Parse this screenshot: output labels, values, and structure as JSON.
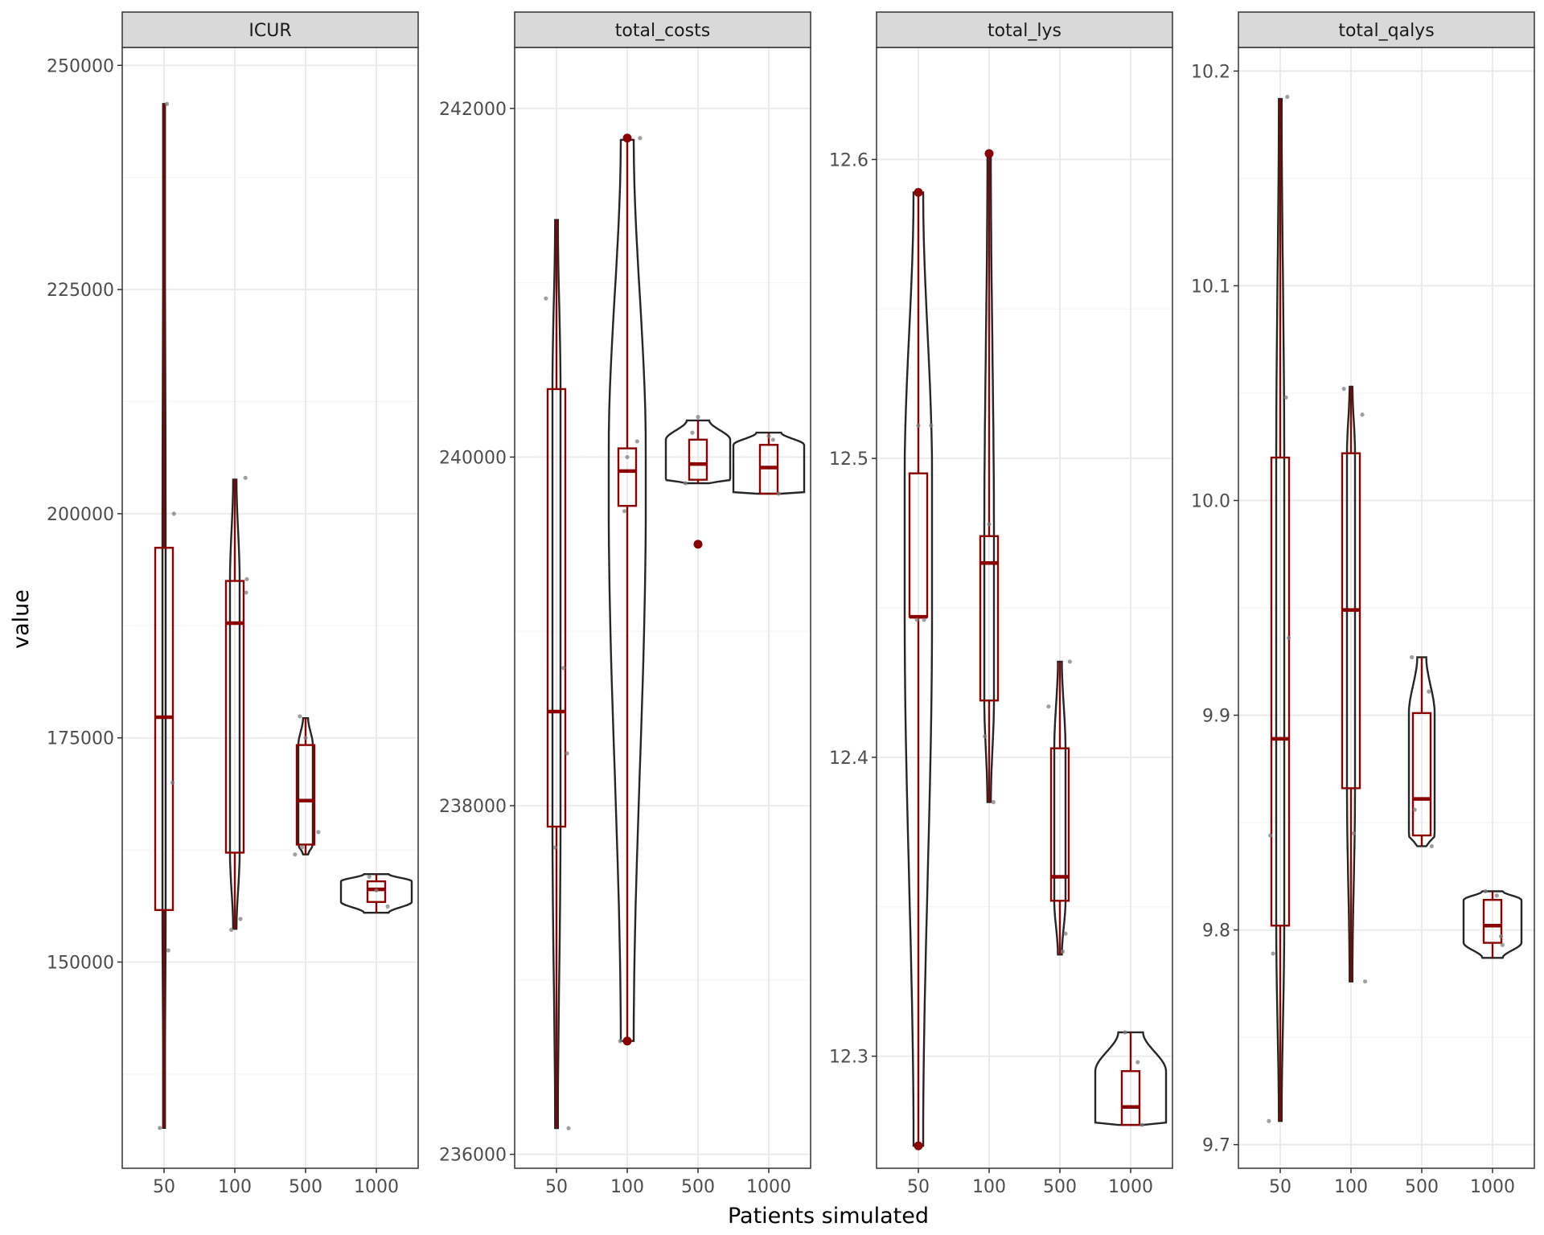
{
  "axes": {
    "xlabel": "Patients simulated",
    "ylabel": "value"
  },
  "colors": {
    "box": "#8b0000",
    "violin": "#262626",
    "point": "#8b0000",
    "jitter": "#7f7f7f",
    "strip_bg": "#d9d9d9",
    "grid_major": "#ebebeb",
    "grid_minor": "#f4f4f4",
    "panel_border": "#333333"
  },
  "chart_data": {
    "type": "violin-boxplot",
    "categories": [
      "50",
      "100",
      "500",
      "1000"
    ],
    "facets": [
      {
        "title": "ICUR",
        "ylim": [
          127000,
          252000
        ],
        "yticks": [
          150000,
          175000,
          200000,
          225000,
          250000
        ],
        "ytick_labels": [
          "150000",
          "175000",
          "200000",
          "225000",
          "250000"
        ],
        "groups": [
          {
            "category": "50",
            "min": 131500,
            "q1": 155800,
            "median": 177300,
            "q3": 196200,
            "max": 245700,
            "violin_max_halfwidth": 2,
            "outliers": [],
            "jitter": [
              [
                -0.06,
                131500
              ],
              [
                0.06,
                151300
              ],
              [
                0.12,
                170000
              ],
              [
                0.14,
                200000
              ],
              [
                0.04,
                245700
              ]
            ]
          },
          {
            "category": "100",
            "min": 153700,
            "q1": 162200,
            "median": 187800,
            "q3": 192500,
            "max": 203800,
            "violin_max_halfwidth": 6,
            "outliers": [],
            "jitter": [
              [
                -0.05,
                153600
              ],
              [
                0.08,
                154800
              ],
              [
                0.16,
                191200
              ],
              [
                0.17,
                192700
              ],
              [
                0.15,
                204000
              ]
            ]
          },
          {
            "category": "500",
            "min": 162000,
            "q1": 163100,
            "median": 168000,
            "q3": 174200,
            "max": 177200,
            "violin_max_halfwidth": 9,
            "outliers": [],
            "jitter": [
              [
                -0.15,
                162000
              ],
              [
                0.18,
                164500
              ],
              [
                -0.05,
                162800
              ],
              [
                0.0,
                175000
              ],
              [
                -0.08,
                177400
              ]
            ]
          },
          {
            "category": "1000",
            "min": 155500,
            "q1": 156700,
            "median": 158100,
            "q3": 159000,
            "max": 159800,
            "violin_max_halfwidth": 44,
            "outliers": [],
            "jitter": [
              [
                0.16,
                156200
              ],
              [
                -0.1,
                159500
              ],
              [
                0.0,
                158000
              ]
            ]
          }
        ]
      },
      {
        "title": "total_costs",
        "ylim": [
          235920,
          242350
        ],
        "yticks": [
          236000,
          238000,
          240000,
          242000
        ],
        "ytick_labels": [
          "236000",
          "238000",
          "240000",
          "242000"
        ],
        "groups": [
          {
            "category": "50",
            "min": 236150,
            "q1": 237880,
            "median": 238540,
            "q3": 240390,
            "max": 241360,
            "violin_max_halfwidth": 5,
            "outliers": [],
            "jitter": [
              [
                -0.15,
                240910
              ],
              [
                0.1,
                238790
              ],
              [
                0.15,
                238300
              ],
              [
                -0.02,
                237760
              ],
              [
                0.17,
                236150
              ]
            ]
          },
          {
            "category": "100",
            "min": 236650,
            "q1": 239720,
            "median": 239920,
            "q3": 240050,
            "max": 241820,
            "violin_max_halfwidth": 23,
            "outliers": [
              241830,
              236650
            ],
            "jitter": [
              [
                0.18,
                241830
              ],
              [
                -0.04,
                239690
              ],
              [
                0.14,
                240090
              ],
              [
                -0.1,
                236650
              ],
              [
                0.0,
                240000
              ]
            ]
          },
          {
            "category": "500",
            "min": 239850,
            "q1": 239870,
            "median": 239960,
            "q3": 240100,
            "max": 240210,
            "violin_max_halfwidth": 40,
            "outliers": [
              239500
            ],
            "jitter": [
              [
                -0.18,
                239850
              ],
              [
                -0.08,
                240140
              ],
              [
                0.0,
                240230
              ],
              [
                0.0,
                239500
              ]
            ]
          },
          {
            "category": "1000",
            "min": 239790,
            "q1": 239790,
            "median": 239940,
            "q3": 240070,
            "max": 240140,
            "violin_max_halfwidth": 44,
            "outliers": [],
            "jitter": [
              [
                0.06,
                240100
              ],
              [
                0.14,
                239790
              ],
              [
                0.0,
                240120
              ]
            ]
          }
        ]
      },
      {
        "title": "total_lys",
        "ylim": [
          12.2625,
          12.6375
        ],
        "yticks": [
          12.3,
          12.4,
          12.5,
          12.6
        ],
        "ytick_labels": [
          "12.3",
          "12.4",
          "12.5",
          "12.6"
        ],
        "groups": [
          {
            "category": "50",
            "min": 12.27,
            "q1": 12.447,
            "median": 12.447,
            "q3": 12.495,
            "max": 12.589,
            "violin_max_halfwidth": 17,
            "outliers": [
              12.589,
              12.27
            ],
            "jitter": [
              [
                0.18,
                12.511
              ],
              [
                0.08,
                12.446
              ],
              [
                0.0,
                12.511
              ],
              [
                -0.02,
                12.446
              ]
            ]
          },
          {
            "category": "100",
            "min": 12.385,
            "q1": 12.419,
            "median": 12.465,
            "q3": 12.474,
            "max": 12.602,
            "violin_max_halfwidth": 6,
            "outliers": [
              12.602
            ],
            "jitter": [
              [
                0.0,
                12.478
              ],
              [
                -0.06,
                12.407
              ],
              [
                0.06,
                12.385
              ],
              [
                0.02,
                12.602
              ]
            ]
          },
          {
            "category": "500",
            "min": 12.334,
            "q1": 12.352,
            "median": 12.36,
            "q3": 12.403,
            "max": 12.432,
            "violin_max_halfwidth": 7,
            "outliers": [],
            "jitter": [
              [
                -0.16,
                12.417
              ],
              [
                0.14,
                12.432
              ],
              [
                0.08,
                12.341
              ],
              [
                0.04,
                12.335
              ]
            ]
          },
          {
            "category": "1000",
            "min": 12.277,
            "q1": 12.277,
            "median": 12.283,
            "q3": 12.295,
            "max": 12.308,
            "violin_max_halfwidth": 44,
            "outliers": [],
            "jitter": [
              [
                -0.08,
                12.308
              ],
              [
                0.1,
                12.298
              ],
              [
                0.16,
                12.277
              ]
            ]
          }
        ]
      },
      {
        "title": "total_qalys",
        "ylim": [
          9.689,
          10.211
        ],
        "yticks": [
          9.7,
          9.8,
          9.9,
          10.0,
          10.1,
          10.2
        ],
        "ytick_labels": [
          "9.7",
          "9.8",
          "9.9",
          "10.0",
          "10.1",
          "10.2"
        ],
        "groups": [
          {
            "category": "50",
            "min": 9.711,
            "q1": 9.802,
            "median": 9.889,
            "q3": 10.02,
            "max": 10.187,
            "violin_max_halfwidth": 5,
            "outliers": [],
            "jitter": [
              [
                -0.16,
                9.711
              ],
              [
                -0.14,
                9.844
              ],
              [
                -0.1,
                9.789
              ],
              [
                0.12,
                9.936
              ],
              [
                0.08,
                10.048
              ],
              [
                0.1,
                10.188
              ]
            ]
          },
          {
            "category": "100",
            "min": 9.776,
            "q1": 9.866,
            "median": 9.949,
            "q3": 10.022,
            "max": 10.053,
            "violin_max_halfwidth": 5,
            "outliers": [],
            "jitter": [
              [
                -0.1,
                10.052
              ],
              [
                0.16,
                10.04
              ],
              [
                0.04,
                9.845
              ],
              [
                0.2,
                9.776
              ]
            ]
          },
          {
            "category": "500",
            "min": 9.839,
            "q1": 9.844,
            "median": 9.861,
            "q3": 9.901,
            "max": 9.927,
            "violin_max_halfwidth": 16,
            "outliers": [],
            "jitter": [
              [
                -0.14,
                9.927
              ],
              [
                0.1,
                9.911
              ],
              [
                0.14,
                9.839
              ],
              [
                -0.1,
                9.856
              ]
            ]
          },
          {
            "category": "1000",
            "min": 9.787,
            "q1": 9.794,
            "median": 9.802,
            "q3": 9.814,
            "max": 9.818,
            "violin_max_halfwidth": 36,
            "outliers": [],
            "jitter": [
              [
                -0.1,
                9.818
              ],
              [
                0.12,
                9.797
              ],
              [
                0.14,
                9.793
              ],
              [
                0.06,
                9.816
              ]
            ]
          }
        ]
      }
    ]
  }
}
